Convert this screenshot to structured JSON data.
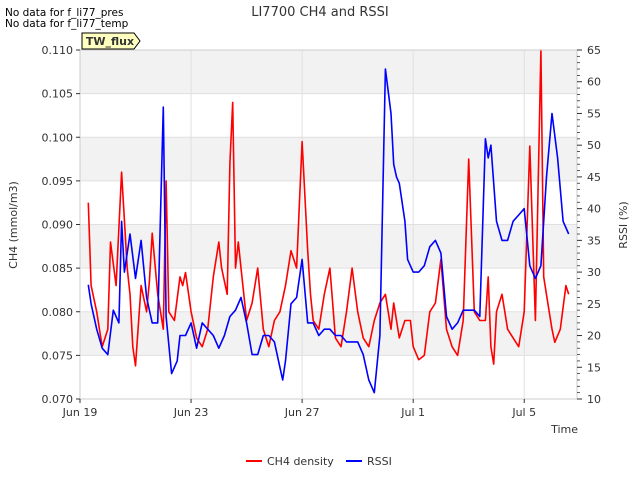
{
  "notes": [
    "No data for f_li77_pres",
    "No data for f_li77_temp"
  ],
  "chart_data": {
    "type": "line",
    "title": "LI7700 CH4 and RSSI",
    "badge": "TW_flux",
    "xlabel": "Time",
    "ylabel": "CH4 (mmol/m3)",
    "y2label": "RSSI (%)",
    "x_range_days": [
      0,
      17.9
    ],
    "x_ticks": [
      {
        "day": 0,
        "label": "Jun 19"
      },
      {
        "day": 4,
        "label": "Jun 23"
      },
      {
        "day": 8,
        "label": "Jun 27"
      },
      {
        "day": 12,
        "label": "Jul 1"
      },
      {
        "day": 16,
        "label": "Jul 5"
      }
    ],
    "ylim": [
      0.07,
      0.11
    ],
    "y_ticks": [
      "0.070",
      "0.075",
      "0.080",
      "0.085",
      "0.090",
      "0.095",
      "0.100",
      "0.105",
      "0.110"
    ],
    "y2lim": [
      10,
      65
    ],
    "y2_ticks": [
      "10",
      "15",
      "20",
      "25",
      "30",
      "35",
      "40",
      "45",
      "50",
      "55",
      "60",
      "65"
    ],
    "legend_position": "bottom-center",
    "series": [
      {
        "name": "CH4 density",
        "axis": "left",
        "color": "#ff0000",
        "x": [
          0.3,
          0.4,
          0.6,
          0.8,
          1.0,
          1.1,
          1.3,
          1.5,
          1.7,
          1.8,
          1.9,
          2.0,
          2.2,
          2.4,
          2.5,
          2.6,
          2.8,
          3.0,
          3.1,
          3.2,
          3.4,
          3.6,
          3.7,
          3.8,
          4.0,
          4.2,
          4.4,
          4.6,
          4.8,
          5.0,
          5.1,
          5.3,
          5.4,
          5.5,
          5.6,
          5.7,
          5.8,
          6.0,
          6.2,
          6.4,
          6.6,
          6.8,
          7.0,
          7.2,
          7.4,
          7.6,
          7.8,
          8.0,
          8.2,
          8.3,
          8.4,
          8.6,
          8.8,
          9.0,
          9.2,
          9.4,
          9.6,
          9.8,
          10.0,
          10.2,
          10.4,
          10.6,
          10.8,
          11.0,
          11.2,
          11.3,
          11.5,
          11.7,
          11.9,
          12.0,
          12.2,
          12.4,
          12.6,
          12.8,
          13.0,
          13.2,
          13.4,
          13.6,
          13.8,
          14.0,
          14.2,
          14.4,
          14.6,
          14.7,
          14.8,
          14.9,
          15.0,
          15.2,
          15.4,
          15.6,
          15.8,
          16.0,
          16.2,
          16.4,
          16.6,
          16.7,
          16.9,
          17.0,
          17.1,
          17.3,
          17.5,
          17.6
        ],
        "values": [
          0.0925,
          0.083,
          0.08,
          0.076,
          0.078,
          0.088,
          0.083,
          0.096,
          0.085,
          0.082,
          0.076,
          0.0738,
          0.083,
          0.08,
          0.0835,
          0.089,
          0.082,
          0.078,
          0.095,
          0.08,
          0.079,
          0.084,
          0.083,
          0.0845,
          0.08,
          0.077,
          0.076,
          0.078,
          0.084,
          0.088,
          0.085,
          0.082,
          0.097,
          0.104,
          0.085,
          0.088,
          0.085,
          0.079,
          0.081,
          0.085,
          0.078,
          0.076,
          0.079,
          0.08,
          0.083,
          0.087,
          0.085,
          0.0995,
          0.087,
          0.082,
          0.079,
          0.078,
          0.082,
          0.085,
          0.077,
          0.076,
          0.08,
          0.085,
          0.08,
          0.077,
          0.076,
          0.079,
          0.081,
          0.082,
          0.078,
          0.081,
          0.077,
          0.079,
          0.079,
          0.076,
          0.0745,
          0.075,
          0.08,
          0.081,
          0.086,
          0.078,
          0.076,
          0.075,
          0.079,
          0.0975,
          0.08,
          0.079,
          0.079,
          0.084,
          0.076,
          0.074,
          0.08,
          0.082,
          0.078,
          0.077,
          0.076,
          0.08,
          0.099,
          0.079,
          0.11,
          0.084,
          0.08,
          0.078,
          0.0765,
          0.078,
          0.083,
          0.082
        ]
      },
      {
        "name": "RSSI",
        "axis": "right",
        "color": "#0000ff",
        "x": [
          0.3,
          0.4,
          0.6,
          0.8,
          1.0,
          1.2,
          1.4,
          1.5,
          1.6,
          1.8,
          2.0,
          2.2,
          2.4,
          2.6,
          2.8,
          3.0,
          3.1,
          3.3,
          3.5,
          3.6,
          3.8,
          4.0,
          4.2,
          4.4,
          4.6,
          4.8,
          5.0,
          5.2,
          5.4,
          5.6,
          5.8,
          6.0,
          6.2,
          6.4,
          6.6,
          6.8,
          7.0,
          7.2,
          7.3,
          7.4,
          7.6,
          7.8,
          8.0,
          8.2,
          8.4,
          8.6,
          8.8,
          9.0,
          9.2,
          9.4,
          9.6,
          9.8,
          10.0,
          10.2,
          10.4,
          10.6,
          10.8,
          11.0,
          11.2,
          11.3,
          11.4,
          11.5,
          11.7,
          11.8,
          12.0,
          12.2,
          12.4,
          12.6,
          12.8,
          13.0,
          13.2,
          13.4,
          13.6,
          13.8,
          14.0,
          14.2,
          14.4,
          14.6,
          14.7,
          14.8,
          15.0,
          15.2,
          15.4,
          15.6,
          15.8,
          16.0,
          16.2,
          16.4,
          16.6,
          16.8,
          17.0,
          17.2,
          17.4,
          17.6
        ],
        "values": [
          28,
          25,
          21,
          18,
          17,
          24,
          22,
          38,
          30,
          36,
          29,
          35,
          26,
          22,
          22,
          56,
          23,
          14,
          16,
          20,
          20,
          22,
          18,
          22,
          21,
          20,
          18,
          20,
          23,
          24,
          26,
          22,
          17,
          17,
          20,
          20,
          19,
          15,
          13,
          16,
          25,
          26,
          32,
          22,
          22,
          20,
          21,
          21,
          20,
          20,
          19,
          19,
          19,
          17,
          13,
          11,
          20,
          62,
          55,
          47,
          45,
          44,
          38,
          32,
          30,
          30,
          31,
          34,
          35,
          33,
          23,
          21,
          22,
          24,
          24,
          24,
          23,
          51,
          48,
          50,
          38,
          35,
          35,
          38,
          39,
          40,
          31,
          29,
          31,
          45,
          55,
          48,
          38,
          36
        ]
      }
    ]
  }
}
